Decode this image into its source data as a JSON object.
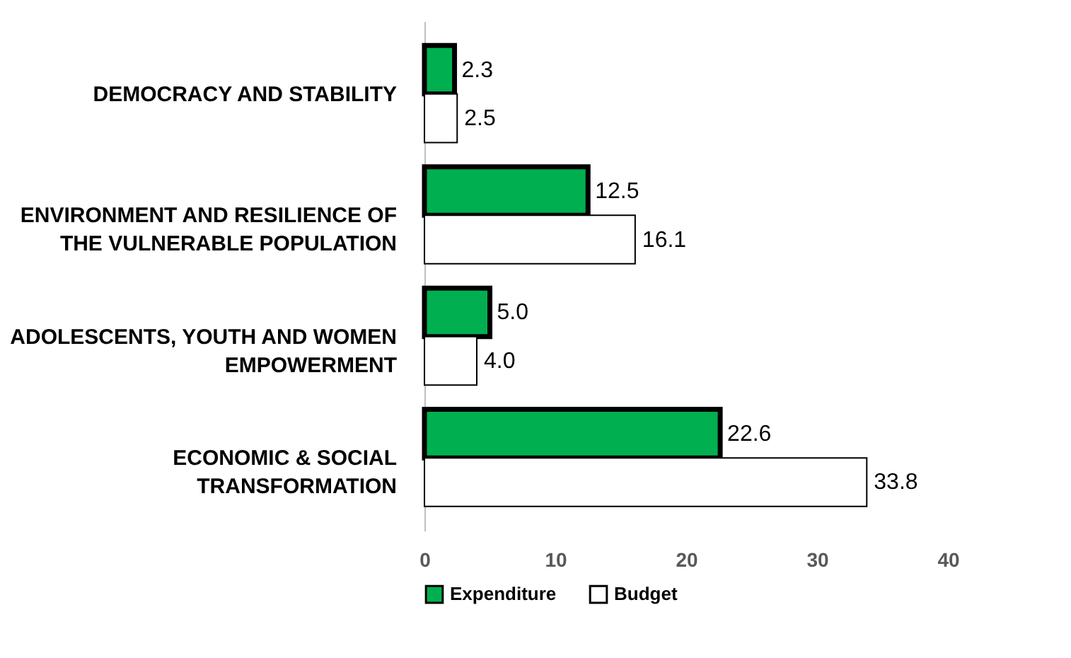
{
  "chart_data": {
    "type": "bar",
    "orientation": "horizontal",
    "categories": [
      "DEMOCRACY AND STABILITY",
      "ENVIRONMENT AND RESILIENCE OF THE VULNERABLE POPULATION",
      "ADOLESCENTS, YOUTH AND WOMEN EMPOWERMENT",
      "ECONOMIC & SOCIAL TRANSFORMATION"
    ],
    "series": [
      {
        "name": "Expenditure",
        "color": "#00b050",
        "values": [
          2.3,
          12.5,
          5.0,
          22.6
        ],
        "value_labels": [
          "2.3",
          "12.5",
          "5.0",
          "22.6"
        ]
      },
      {
        "name": "Budget",
        "color": "#ffffff",
        "values": [
          2.5,
          16.1,
          4.0,
          33.8
        ],
        "value_labels": [
          "2.5",
          "16.1",
          "4.0",
          "33.8"
        ]
      }
    ],
    "xlim": [
      0,
      40
    ],
    "xticks": [
      0,
      10,
      20,
      30,
      40
    ],
    "grid": false,
    "legend": "bottom"
  }
}
